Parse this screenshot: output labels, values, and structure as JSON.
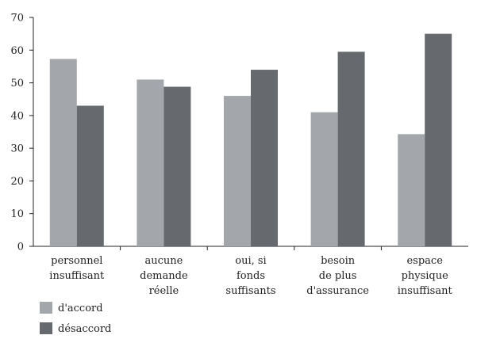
{
  "chart_data": {
    "type": "bar",
    "title": "",
    "xlabel": "",
    "ylabel": "",
    "ylim": [
      0,
      70
    ],
    "yticks": [
      0,
      10,
      20,
      30,
      40,
      50,
      60,
      70
    ],
    "grid": false,
    "legend_position": "bottom-left",
    "categories": [
      [
        "personnel",
        "insuffisant"
      ],
      [
        "aucune",
        "demande",
        "réelle"
      ],
      [
        "oui, si",
        "fonds",
        "suffisants"
      ],
      [
        "besoin",
        "de plus",
        "d'assurance"
      ],
      [
        "espace",
        "physique",
        "insuffisant"
      ]
    ],
    "series": [
      {
        "name": "d'accord",
        "color": "#a3a6ab",
        "values": [
          57.3,
          51,
          46,
          41,
          34.3
        ]
      },
      {
        "name": "désaccord",
        "color": "#666a6e",
        "values": [
          43,
          48.8,
          54,
          59.5,
          65
        ]
      }
    ]
  }
}
